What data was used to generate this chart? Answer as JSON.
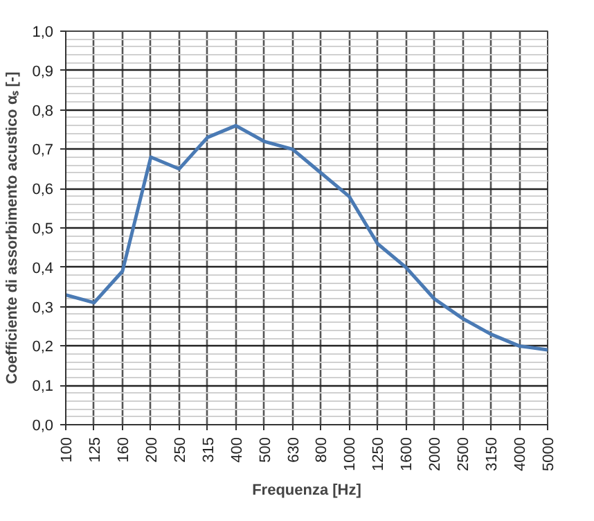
{
  "chart_data": {
    "type": "line",
    "xlabel": "Frequenza [Hz]",
    "ylabel": "Coefficiente di assorbimento acustico αₛ [-]",
    "categories": [
      "100",
      "125",
      "160",
      "200",
      "250",
      "315",
      "400",
      "500",
      "630",
      "800",
      "1000",
      "1250",
      "1600",
      "2000",
      "2500",
      "3150",
      "4000",
      "5000"
    ],
    "series": [
      {
        "color": "#4a7ab4",
        "values": [
          0.33,
          0.31,
          0.39,
          0.68,
          0.65,
          0.73,
          0.76,
          0.72,
          0.7,
          0.64,
          0.58,
          0.46,
          0.4,
          0.32,
          0.27,
          0.23,
          0.2,
          0.19
        ]
      }
    ],
    "ylim": [
      0,
      1
    ],
    "yticks": [
      {
        "value": 0,
        "label": "0,0"
      },
      {
        "value": 0.1,
        "label": "0,1"
      },
      {
        "value": 0.2,
        "label": "0,2"
      },
      {
        "value": 0.3,
        "label": "0,3"
      },
      {
        "value": 0.4,
        "label": "0,4"
      },
      {
        "value": 0.5,
        "label": "0,5"
      },
      {
        "value": 0.6,
        "label": "0,6"
      },
      {
        "value": 0.7,
        "label": "0,7"
      },
      {
        "value": 0.8,
        "label": "0,8"
      },
      {
        "value": 0.9,
        "label": "0,9"
      },
      {
        "value": 1.0,
        "label": "1,0"
      }
    ],
    "grid": true,
    "marker": "none",
    "line_style": "solid"
  }
}
